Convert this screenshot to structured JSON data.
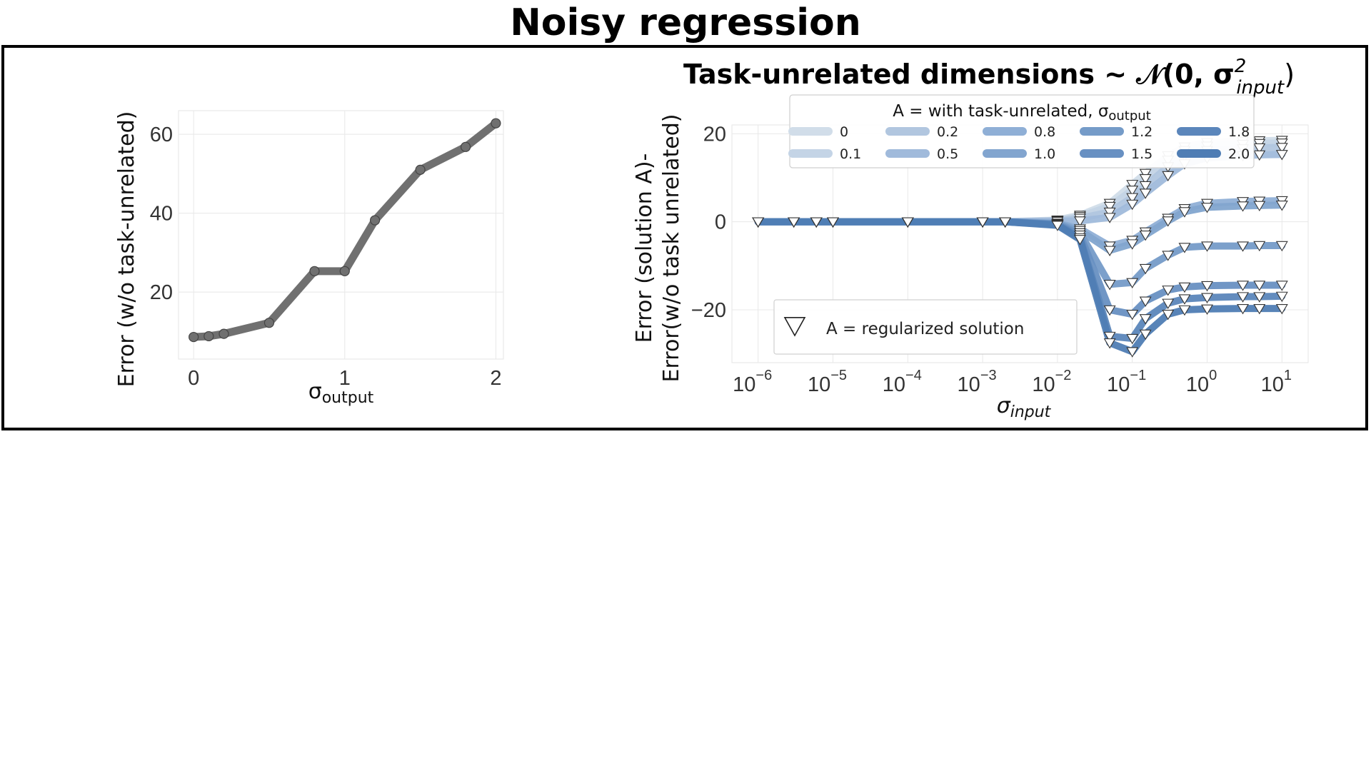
{
  "title": "Noisy regression",
  "chart_data": [
    {
      "type": "line",
      "xlabel": "σ",
      "xlabel_sub": "output",
      "ylabel": "Error (w/o task-unrelated)",
      "xlim": [
        -0.1,
        2.05
      ],
      "ylim": [
        3,
        66
      ],
      "xticks": [
        0,
        1,
        2
      ],
      "yticks": [
        20,
        40,
        60
      ],
      "x": [
        0,
        0.1,
        0.2,
        0.5,
        0.8,
        1.0,
        1.2,
        1.5,
        1.8,
        2.0
      ],
      "values": [
        8.6,
        8.8,
        9.4,
        12.2,
        25.3,
        25.3,
        38.2,
        51.0,
        56.8,
        62.8
      ],
      "color": "#707070"
    },
    {
      "type": "line",
      "title": "Task-unrelated dimensions ~ 𝒩(0, σ",
      "title_sup": "2",
      "title_sub": "input",
      "title_end": ")",
      "xlabel": "σ",
      "xlabel_sub": "input",
      "ylabel_line1": "Error (solution A)-",
      "ylabel_line2": "Error(w/o task unrelated)",
      "x_scale": "log",
      "xlim_log10": [
        -6.35,
        1.35
      ],
      "ylim": [
        -32,
        22
      ],
      "yticks": [
        -20,
        0,
        20
      ],
      "xticks_base": "10",
      "xticks_exp": [
        "−6",
        "−5",
        "−4",
        "−3",
        "−2",
        "−1",
        "0",
        "1"
      ],
      "x": [
        1e-06,
        3e-06,
        6e-06,
        1e-05,
        0.0001,
        0.001,
        0.002,
        0.01,
        0.02,
        0.05,
        0.1,
        0.15,
        0.3,
        0.5,
        1,
        3,
        5,
        10
      ],
      "series": [
        {
          "name": "0",
          "color": "#d1dde9",
          "values": [
            0,
            0,
            0,
            0,
            0,
            0,
            0,
            0.4,
            1.5,
            4.2,
            8.5,
            11,
            15,
            17,
            18,
            18.3,
            18.4,
            18.5
          ]
        },
        {
          "name": "0.1",
          "color": "#c4d4e6",
          "values": [
            0,
            0,
            0,
            0,
            0,
            0,
            0,
            0.3,
            1.2,
            3.5,
            7.2,
            9.8,
            14,
            16.2,
            17.2,
            17.6,
            17.8,
            17.9
          ]
        },
        {
          "name": "0.2",
          "color": "#b1c6df",
          "values": [
            0,
            0,
            0,
            0,
            0,
            0,
            0,
            0.2,
            0.8,
            2.2,
            5.5,
            8.2,
            12.5,
            15,
            16.2,
            16.6,
            16.8,
            16.9
          ]
        },
        {
          "name": "0.5",
          "color": "#a0badb",
          "values": [
            0,
            0,
            0,
            0,
            0,
            0,
            0,
            0.1,
            0.2,
            1.0,
            4.0,
            6.5,
            10.5,
            13.2,
            14.5,
            15.0,
            15.2,
            15.3
          ]
        },
        {
          "name": "0.8",
          "color": "#8fafd6",
          "values": [
            0,
            0,
            0,
            0,
            0,
            0,
            0,
            -0.3,
            -1.6,
            -5.5,
            -4.2,
            -2.3,
            0.8,
            3.0,
            4.2,
            4.6,
            4.7,
            4.8
          ]
        },
        {
          "name": "1.0",
          "color": "#82a5cf",
          "values": [
            0,
            0,
            0,
            0,
            0,
            0,
            0,
            -0.4,
            -2.0,
            -6.5,
            -5.0,
            -3.0,
            0.2,
            2.3,
            3.3,
            3.6,
            3.7,
            3.8
          ]
        },
        {
          "name": "1.2",
          "color": "#759bc8",
          "values": [
            0,
            0,
            0,
            0,
            0,
            0,
            0,
            -0.5,
            -2.5,
            -14.2,
            -13.8,
            -10.6,
            -7.6,
            -5.8,
            -5.5,
            -5.5,
            -5.4,
            -5.4
          ]
        },
        {
          "name": "1.5",
          "color": "#6890c2",
          "values": [
            0,
            0,
            0,
            0,
            0,
            0,
            0,
            -0.6,
            -3.0,
            -20.0,
            -21.0,
            -18.0,
            -15.5,
            -14.8,
            -14.5,
            -14.4,
            -14.4,
            -14.4
          ]
        },
        {
          "name": "1.8",
          "color": "#5b86bb",
          "values": [
            0,
            0,
            0,
            0,
            0,
            0,
            0,
            -0.7,
            -3.6,
            -26.0,
            -26.5,
            -22.0,
            -18.5,
            -17.5,
            -17.2,
            -17.0,
            -17.0,
            -16.9
          ]
        },
        {
          "name": "2.0",
          "color": "#4f7db4",
          "values": [
            0,
            0,
            0,
            0,
            0,
            0,
            0,
            -0.8,
            -4.0,
            -27.5,
            -29.5,
            -25.5,
            -21.0,
            -20.0,
            -19.8,
            -19.7,
            -19.7,
            -19.7
          ]
        }
      ],
      "legend": {
        "title_prefix": "A = with task-unrelated,  σ",
        "title_sub": "output",
        "placement": "top"
      },
      "marker_legend": {
        "label": "A = regularized solution",
        "placement": "lower-left"
      }
    }
  ]
}
